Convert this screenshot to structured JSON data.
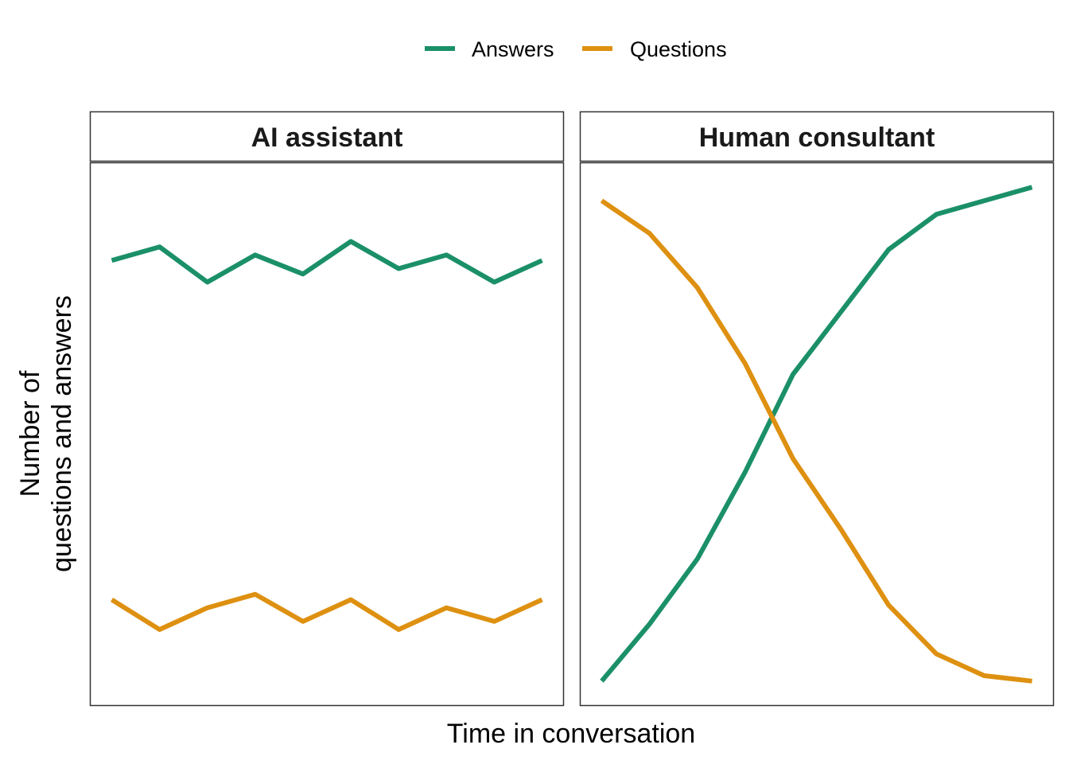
{
  "chart_data": {
    "type": "line",
    "xlabel": "Time in conversation",
    "ylabel_lines": [
      "Number of",
      "questions and answers"
    ],
    "legend": {
      "position": "top",
      "entries": [
        {
          "name": "Answers",
          "color": "#1b9068"
        },
        {
          "name": "Questions",
          "color": "#de9010"
        }
      ]
    },
    "ylim": [
      0,
      1
    ],
    "grid": false,
    "axis_ticks": false,
    "panels": [
      {
        "title": "AI assistant",
        "x": [
          1,
          2,
          3,
          4,
          5,
          6,
          7,
          8,
          9,
          10
        ],
        "series": [
          {
            "name": "Answers",
            "color": "#1b9068",
            "values": [
              0.82,
              0.845,
              0.78,
              0.83,
              0.795,
              0.855,
              0.805,
              0.83,
              0.78,
              0.82
            ]
          },
          {
            "name": "Questions",
            "color": "#de9010",
            "values": [
              0.195,
              0.14,
              0.18,
              0.205,
              0.155,
              0.195,
              0.14,
              0.18,
              0.155,
              0.195
            ]
          }
        ]
      },
      {
        "title": "Human consultant",
        "x": [
          1,
          2,
          3,
          4,
          5,
          6,
          7,
          8,
          9,
          10
        ],
        "series": [
          {
            "name": "Answers",
            "color": "#1b9068",
            "values": [
              0.045,
              0.15,
              0.27,
              0.43,
              0.61,
              0.725,
              0.84,
              0.905,
              0.93,
              0.955
            ]
          },
          {
            "name": "Questions",
            "color": "#de9010",
            "values": [
              0.93,
              0.87,
              0.77,
              0.63,
              0.455,
              0.325,
              0.185,
              0.095,
              0.055,
              0.045
            ]
          }
        ]
      }
    ]
  }
}
